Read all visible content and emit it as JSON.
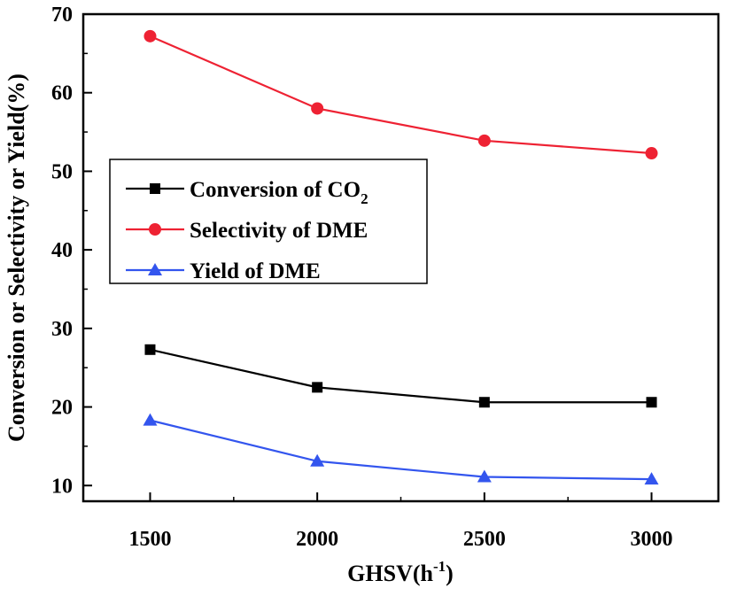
{
  "chart_data": {
    "type": "line",
    "xlabel": "GHSV(h",
    "xlabel_sup": "-1",
    "xlabel_end": ")",
    "ylabel": "Conversion or Selectivity or Yield(%)",
    "x": [
      1500,
      2000,
      2500,
      3000
    ],
    "xlim": [
      1300,
      3200
    ],
    "ylim": [
      8,
      70
    ],
    "xticks": [
      "1500",
      "2000",
      "2500",
      "3000"
    ],
    "yticks": [
      "10",
      "20",
      "30",
      "40",
      "50",
      "60",
      "70"
    ],
    "grid": false,
    "legend_position": "middle-left",
    "series": [
      {
        "name": "Conversion of CO",
        "name_sub": "2",
        "marker": "square",
        "color": "#000000",
        "values": [
          27.3,
          22.5,
          20.6,
          20.6
        ]
      },
      {
        "name": "Selectivity of DME",
        "marker": "circle",
        "color": "#ee2233",
        "values": [
          67.2,
          58.0,
          53.9,
          52.3
        ]
      },
      {
        "name": "Yield of DME",
        "marker": "triangle",
        "color": "#3355ee",
        "values": [
          18.3,
          13.1,
          11.1,
          10.8
        ]
      }
    ]
  }
}
